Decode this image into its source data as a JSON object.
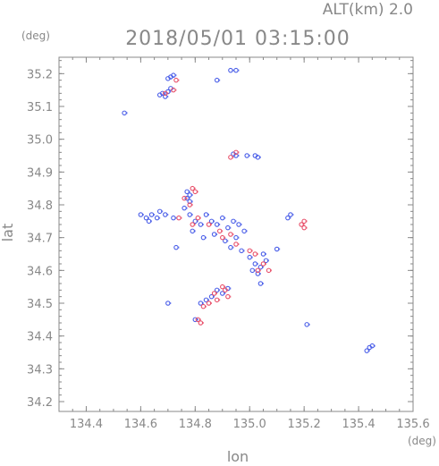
{
  "chart_data": {
    "type": "scatter",
    "title": "2018/05/01 03:15:00",
    "subtitle": "ALT(km) 2.0",
    "xlabel": "lon",
    "ylabel": "lat",
    "x_unit": "(deg)",
    "y_unit": "(deg)",
    "xlim": [
      134.3,
      135.6
    ],
    "ylim": [
      34.17,
      35.25
    ],
    "xticks": [
      134.4,
      134.6,
      134.8,
      135.0,
      135.2,
      135.4,
      135.6
    ],
    "yticks": [
      34.2,
      34.3,
      34.4,
      34.5,
      34.6,
      34.7,
      34.8,
      34.9,
      35.0,
      35.1,
      35.2
    ],
    "grid": false,
    "colors": {
      "positive": "#e8506a",
      "negative": "#4a5ee8",
      "axis": "#888888"
    },
    "series": [
      {
        "values": [
          [
            134.93,
            35.21
          ],
          [
            134.95,
            35.21
          ],
          [
            134.71,
            35.19
          ],
          [
            134.72,
            35.195
          ],
          [
            134.7,
            35.185
          ],
          [
            134.68,
            35.14
          ],
          [
            134.69,
            35.13
          ],
          [
            134.67,
            35.135
          ],
          [
            134.7,
            35.145
          ],
          [
            134.71,
            35.155
          ],
          [
            134.54,
            35.08
          ],
          [
            134.88,
            35.18
          ],
          [
            134.94,
            34.955
          ],
          [
            134.95,
            34.95
          ],
          [
            135.03,
            34.945
          ],
          [
            135.02,
            34.95
          ],
          [
            134.99,
            34.95
          ],
          [
            134.77,
            34.84
          ],
          [
            134.78,
            34.83
          ],
          [
            134.77,
            34.82
          ],
          [
            134.78,
            34.81
          ],
          [
            134.6,
            34.77
          ],
          [
            134.62,
            34.76
          ],
          [
            134.64,
            34.77
          ],
          [
            134.66,
            34.76
          ],
          [
            134.67,
            34.78
          ],
          [
            134.69,
            34.77
          ],
          [
            134.72,
            34.76
          ],
          [
            134.63,
            34.75
          ],
          [
            134.76,
            34.79
          ],
          [
            134.78,
            34.77
          ],
          [
            134.8,
            34.75
          ],
          [
            134.82,
            34.74
          ],
          [
            134.84,
            34.77
          ],
          [
            134.86,
            34.75
          ],
          [
            134.88,
            34.74
          ],
          [
            134.9,
            34.76
          ],
          [
            134.92,
            34.73
          ],
          [
            134.94,
            34.75
          ],
          [
            134.96,
            34.74
          ],
          [
            134.98,
            34.72
          ],
          [
            134.79,
            34.72
          ],
          [
            134.83,
            34.7
          ],
          [
            134.87,
            34.71
          ],
          [
            134.91,
            34.69
          ],
          [
            134.95,
            34.7
          ],
          [
            134.93,
            34.67
          ],
          [
            134.97,
            34.66
          ],
          [
            135.0,
            34.64
          ],
          [
            135.02,
            34.62
          ],
          [
            135.04,
            34.61
          ],
          [
            135.06,
            34.63
          ],
          [
            135.01,
            34.6
          ],
          [
            135.03,
            34.59
          ],
          [
            135.05,
            34.65
          ],
          [
            135.15,
            34.77
          ],
          [
            135.14,
            34.76
          ],
          [
            135.1,
            34.665
          ],
          [
            134.73,
            34.67
          ],
          [
            134.88,
            34.54
          ],
          [
            134.9,
            34.53
          ],
          [
            134.86,
            34.52
          ],
          [
            134.84,
            34.51
          ],
          [
            134.82,
            34.5
          ],
          [
            134.92,
            34.545
          ],
          [
            135.04,
            34.56
          ],
          [
            134.7,
            34.5
          ],
          [
            134.8,
            34.45
          ],
          [
            135.21,
            34.435
          ],
          [
            135.44,
            34.365
          ],
          [
            135.43,
            34.355
          ],
          [
            135.45,
            34.37
          ]
        ]
      },
      {
        "values": [
          [
            134.73,
            35.18
          ],
          [
            134.69,
            35.14
          ],
          [
            134.72,
            35.15
          ],
          [
            134.95,
            34.96
          ],
          [
            134.93,
            34.945
          ],
          [
            134.79,
            34.85
          ],
          [
            134.8,
            34.84
          ],
          [
            134.78,
            34.8
          ],
          [
            134.76,
            34.82
          ],
          [
            134.74,
            34.76
          ],
          [
            134.79,
            34.74
          ],
          [
            134.81,
            34.76
          ],
          [
            134.85,
            34.74
          ],
          [
            134.89,
            34.72
          ],
          [
            134.93,
            34.71
          ],
          [
            134.9,
            34.7
          ],
          [
            134.95,
            34.68
          ],
          [
            135.0,
            34.66
          ],
          [
            135.03,
            34.6
          ],
          [
            135.05,
            34.62
          ],
          [
            135.02,
            34.65
          ],
          [
            135.07,
            34.6
          ],
          [
            135.2,
            34.75
          ],
          [
            135.19,
            34.74
          ],
          [
            135.2,
            34.73
          ],
          [
            134.9,
            34.55
          ],
          [
            134.91,
            34.54
          ],
          [
            134.87,
            34.53
          ],
          [
            134.92,
            34.52
          ],
          [
            134.88,
            34.51
          ],
          [
            134.85,
            34.5
          ],
          [
            134.83,
            34.49
          ],
          [
            134.81,
            34.45
          ],
          [
            134.82,
            34.44
          ]
        ]
      }
    ]
  }
}
